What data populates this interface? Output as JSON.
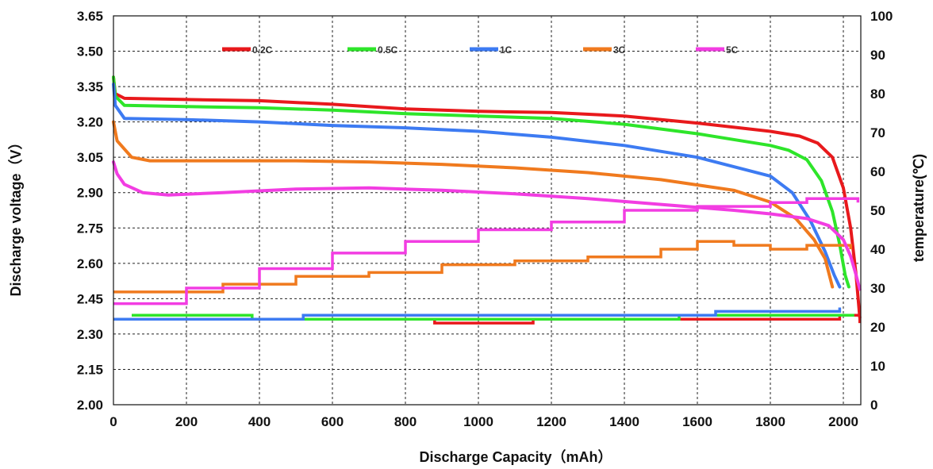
{
  "chart_data": {
    "type": "line",
    "xlabel": "Discharge Capacity（mAh）",
    "ylabel": "Discharge  voltage（V）",
    "y2label": "temperature(℃)",
    "xlim": [
      0,
      2050
    ],
    "ylim": [
      2.0,
      3.65
    ],
    "y2lim": [
      0,
      100
    ],
    "x_ticks": [
      "0",
      "200",
      "400",
      "600",
      "800",
      "1000",
      "1200",
      "1400",
      "1600",
      "1800",
      "2000"
    ],
    "y_ticks": [
      "2.00",
      "2.15",
      "2.30",
      "2.45",
      "2.60",
      "2.75",
      "2.90",
      "3.05",
      "3.20",
      "3.35",
      "3.50",
      "3.65"
    ],
    "y2_ticks": [
      "0",
      "10",
      "20",
      "30",
      "40",
      "50",
      "60",
      "70",
      "80",
      "90",
      "100"
    ],
    "grid": true,
    "legend_position": "top",
    "series": [
      {
        "name": "0.2C",
        "color": "#e8191c",
        "voltage": [
          [
            0,
            3.39
          ],
          [
            5,
            3.32
          ],
          [
            30,
            3.3
          ],
          [
            200,
            3.295
          ],
          [
            400,
            3.29
          ],
          [
            600,
            3.275
          ],
          [
            800,
            3.255
          ],
          [
            1000,
            3.245
          ],
          [
            1200,
            3.24
          ],
          [
            1400,
            3.225
          ],
          [
            1600,
            3.195
          ],
          [
            1800,
            3.16
          ],
          [
            1880,
            3.14
          ],
          [
            1930,
            3.11
          ],
          [
            1970,
            3.05
          ],
          [
            2000,
            2.92
          ],
          [
            2020,
            2.75
          ],
          [
            2035,
            2.55
          ],
          [
            2045,
            2.37
          ]
        ],
        "temperature": [
          [
            0,
            22
          ],
          [
            880,
            22
          ],
          [
            880,
            21
          ],
          [
            1150,
            21
          ],
          [
            1150,
            22
          ],
          [
            1900,
            22
          ],
          [
            1990,
            23
          ],
          [
            2030,
            23
          ],
          [
            2045,
            21
          ]
        ]
      },
      {
        "name": "0.5C",
        "color": "#2ee52a",
        "voltage": [
          [
            0,
            3.39
          ],
          [
            5,
            3.31
          ],
          [
            30,
            3.27
          ],
          [
            200,
            3.265
          ],
          [
            400,
            3.26
          ],
          [
            600,
            3.25
          ],
          [
            800,
            3.235
          ],
          [
            1000,
            3.225
          ],
          [
            1200,
            3.215
          ],
          [
            1400,
            3.19
          ],
          [
            1600,
            3.15
          ],
          [
            1800,
            3.1
          ],
          [
            1850,
            3.08
          ],
          [
            1900,
            3.04
          ],
          [
            1940,
            2.95
          ],
          [
            1970,
            2.82
          ],
          [
            1990,
            2.68
          ],
          [
            2005,
            2.55
          ],
          [
            2015,
            2.5
          ]
        ],
        "temperature": [
          [
            50,
            23
          ],
          [
            380,
            23
          ],
          [
            380,
            22
          ],
          [
            1550,
            22
          ],
          [
            1550,
            23
          ],
          [
            2030,
            23
          ]
        ]
      },
      {
        "name": "1C",
        "color": "#3d7bf2",
        "voltage": [
          [
            0,
            3.36
          ],
          [
            5,
            3.27
          ],
          [
            30,
            3.215
          ],
          [
            200,
            3.21
          ],
          [
            400,
            3.2
          ],
          [
            600,
            3.185
          ],
          [
            800,
            3.175
          ],
          [
            1000,
            3.16
          ],
          [
            1200,
            3.135
          ],
          [
            1400,
            3.1
          ],
          [
            1600,
            3.05
          ],
          [
            1800,
            2.97
          ],
          [
            1860,
            2.9
          ],
          [
            1910,
            2.78
          ],
          [
            1950,
            2.65
          ],
          [
            1975,
            2.55
          ],
          [
            1990,
            2.5
          ]
        ],
        "temperature": [
          [
            0,
            22
          ],
          [
            520,
            22
          ],
          [
            520,
            23
          ],
          [
            1650,
            23
          ],
          [
            1650,
            24
          ],
          [
            1990,
            25
          ]
        ]
      },
      {
        "name": "3C",
        "color": "#f07a1e",
        "voltage": [
          [
            0,
            3.2
          ],
          [
            10,
            3.12
          ],
          [
            50,
            3.05
          ],
          [
            100,
            3.035
          ],
          [
            300,
            3.035
          ],
          [
            500,
            3.035
          ],
          [
            700,
            3.03
          ],
          [
            900,
            3.02
          ],
          [
            1100,
            3.005
          ],
          [
            1300,
            2.985
          ],
          [
            1500,
            2.955
          ],
          [
            1700,
            2.91
          ],
          [
            1800,
            2.86
          ],
          [
            1870,
            2.79
          ],
          [
            1920,
            2.7
          ],
          [
            1950,
            2.62
          ],
          [
            1970,
            2.5
          ]
        ],
        "temperature": [
          [
            0,
            29
          ],
          [
            100,
            29
          ],
          [
            300,
            31
          ],
          [
            500,
            33
          ],
          [
            700,
            34
          ],
          [
            900,
            36
          ],
          [
            1100,
            37
          ],
          [
            1300,
            38
          ],
          [
            1500,
            40
          ],
          [
            1600,
            42
          ],
          [
            1700,
            41
          ],
          [
            1800,
            40
          ],
          [
            1900,
            41
          ],
          [
            1980,
            41
          ],
          [
            2020,
            40
          ]
        ]
      },
      {
        "name": "5C",
        "color": "#f23de2",
        "voltage": [
          [
            0,
            3.03
          ],
          [
            10,
            2.98
          ],
          [
            30,
            2.935
          ],
          [
            80,
            2.9
          ],
          [
            150,
            2.89
          ],
          [
            300,
            2.9
          ],
          [
            500,
            2.915
          ],
          [
            700,
            2.92
          ],
          [
            900,
            2.91
          ],
          [
            1100,
            2.895
          ],
          [
            1300,
            2.875
          ],
          [
            1500,
            2.85
          ],
          [
            1700,
            2.825
          ],
          [
            1800,
            2.81
          ],
          [
            1900,
            2.79
          ],
          [
            1960,
            2.76
          ],
          [
            2000,
            2.7
          ],
          [
            2020,
            2.63
          ],
          [
            2035,
            2.55
          ],
          [
            2045,
            2.49
          ]
        ],
        "temperature": [
          [
            0,
            26
          ],
          [
            200,
            30
          ],
          [
            400,
            35
          ],
          [
            600,
            39
          ],
          [
            800,
            42
          ],
          [
            1000,
            45
          ],
          [
            1200,
            47
          ],
          [
            1400,
            50
          ],
          [
            1600,
            51
          ],
          [
            1800,
            52
          ],
          [
            1900,
            53
          ],
          [
            2000,
            53
          ],
          [
            2040,
            52
          ]
        ]
      }
    ]
  }
}
